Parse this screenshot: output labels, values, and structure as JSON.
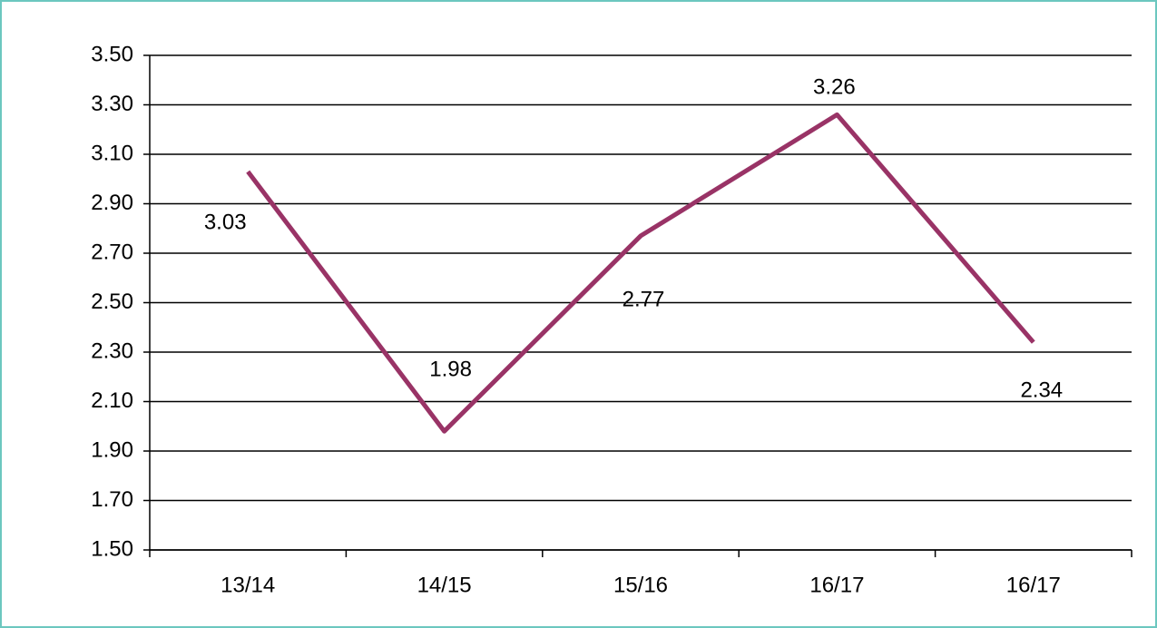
{
  "chart_data": {
    "type": "line",
    "categories": [
      "13/14",
      "14/15",
      "15/16",
      "16/17",
      "16/17"
    ],
    "values": [
      3.03,
      1.98,
      2.77,
      3.26,
      2.34
    ],
    "color": "#993366",
    "ylim": [
      1.5,
      3.5
    ],
    "yticks": [
      {
        "value": 1.5,
        "label": "1.50"
      },
      {
        "value": 1.7,
        "label": "1.70"
      },
      {
        "value": 1.9,
        "label": "1.90"
      },
      {
        "value": 2.1,
        "label": "2.10"
      },
      {
        "value": 2.3,
        "label": "2.30"
      },
      {
        "value": 2.5,
        "label": "2.50"
      },
      {
        "value": 2.7,
        "label": "2.70"
      },
      {
        "value": 2.9,
        "label": "2.90"
      },
      {
        "value": 3.1,
        "label": "3.10"
      },
      {
        "value": 3.3,
        "label": "3.30"
      },
      {
        "value": 3.5,
        "label": "3.50"
      }
    ],
    "grid": true
  }
}
